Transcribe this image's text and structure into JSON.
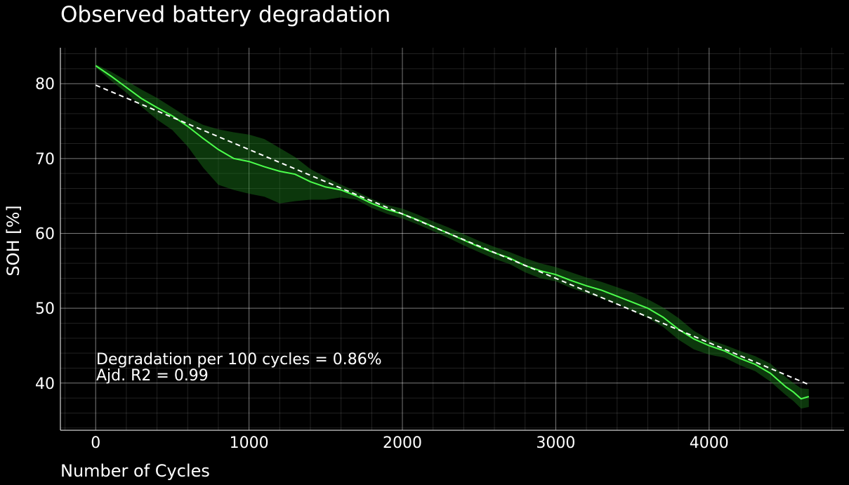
{
  "chart_data": {
    "type": "line",
    "title": "Observed battery degradation",
    "xlabel": "Number of Cycles",
    "ylabel": "SOH [%]",
    "xlim": [
      -230,
      4880
    ],
    "ylim": [
      33.7,
      84.8
    ],
    "xticks": [
      0,
      1000,
      2000,
      3000,
      4000
    ],
    "yticks": [
      40,
      50,
      60,
      70,
      80
    ],
    "x_minor_step": 200,
    "y_minor_step": 2,
    "grid": true,
    "annotations": [
      "Degradation per 100 cycles = 0.86%",
      "Ajd. R2 = 0.99"
    ],
    "series": [
      {
        "style": "solid",
        "color": "#4cff4c",
        "x": [
          0,
          100,
          200,
          300,
          400,
          500,
          600,
          700,
          800,
          900,
          1000,
          1100,
          1200,
          1300,
          1400,
          1500,
          1600,
          1700,
          1800,
          1900,
          2000,
          2100,
          2200,
          2300,
          2400,
          2500,
          2600,
          2700,
          2800,
          2900,
          3000,
          3100,
          3200,
          3300,
          3400,
          3500,
          3600,
          3700,
          3800,
          3900,
          4000,
          4100,
          4200,
          4300,
          4400,
          4500,
          4550,
          4600,
          4650
        ],
        "y": [
          82.4,
          81.0,
          79.5,
          78.0,
          76.8,
          75.7,
          74.3,
          72.7,
          71.2,
          70.0,
          69.6,
          68.9,
          68.3,
          67.9,
          66.9,
          66.2,
          65.8,
          65.0,
          64.0,
          63.2,
          62.6,
          61.8,
          60.9,
          60.0,
          59.1,
          58.2,
          57.4,
          56.7,
          55.7,
          55.0,
          54.5,
          53.7,
          53.0,
          52.4,
          51.6,
          50.8,
          50.0,
          48.8,
          47.2,
          45.9,
          45.0,
          44.3,
          43.3,
          42.5,
          41.3,
          39.5,
          38.8,
          37.9,
          38.2
        ]
      },
      {
        "style": "dashed",
        "color": "#ffffff",
        "x": [
          0,
          4650
        ],
        "y": [
          79.8,
          39.8
        ]
      }
    ],
    "band": {
      "color": "#1a7a1a",
      "x": [
        0,
        100,
        200,
        300,
        400,
        500,
        600,
        700,
        800,
        900,
        1000,
        1100,
        1200,
        1300,
        1400,
        1500,
        1600,
        1700,
        1800,
        1900,
        2000,
        2100,
        2200,
        2300,
        2400,
        2500,
        2600,
        2700,
        2800,
        2900,
        3000,
        3100,
        3200,
        3300,
        3400,
        3500,
        3600,
        3700,
        3800,
        3900,
        4000,
        4100,
        4200,
        4300,
        4400,
        4500,
        4550,
        4600,
        4650
      ],
      "upper": [
        82.6,
        81.6,
        80.4,
        79.2,
        78.1,
        76.8,
        75.5,
        74.5,
        73.9,
        73.5,
        73.2,
        72.6,
        71.4,
        70.2,
        68.6,
        67.5,
        66.5,
        65.6,
        64.6,
        63.8,
        63.3,
        62.5,
        61.6,
        60.8,
        59.9,
        59.0,
        58.2,
        57.5,
        56.7,
        56.0,
        55.5,
        54.8,
        54.1,
        53.5,
        52.8,
        52.1,
        51.2,
        50.1,
        48.7,
        47.0,
        45.8,
        45.1,
        44.3,
        43.6,
        42.6,
        40.8,
        40.0,
        39.3,
        39.2
      ],
      "lower": [
        82.2,
        80.4,
        78.8,
        76.9,
        75.2,
        73.8,
        71.6,
        68.8,
        66.5,
        65.8,
        65.3,
        64.9,
        64.0,
        64.3,
        64.5,
        64.5,
        64.8,
        64.5,
        63.4,
        62.6,
        62.0,
        61.2,
        60.3,
        59.4,
        58.4,
        57.5,
        56.6,
        55.9,
        54.8,
        54.0,
        53.6,
        52.7,
        52.0,
        51.3,
        50.5,
        49.6,
        48.7,
        47.5,
        45.8,
        44.5,
        43.8,
        43.4,
        42.4,
        41.6,
        40.2,
        38.4,
        37.6,
        36.6,
        36.8
      ]
    }
  }
}
